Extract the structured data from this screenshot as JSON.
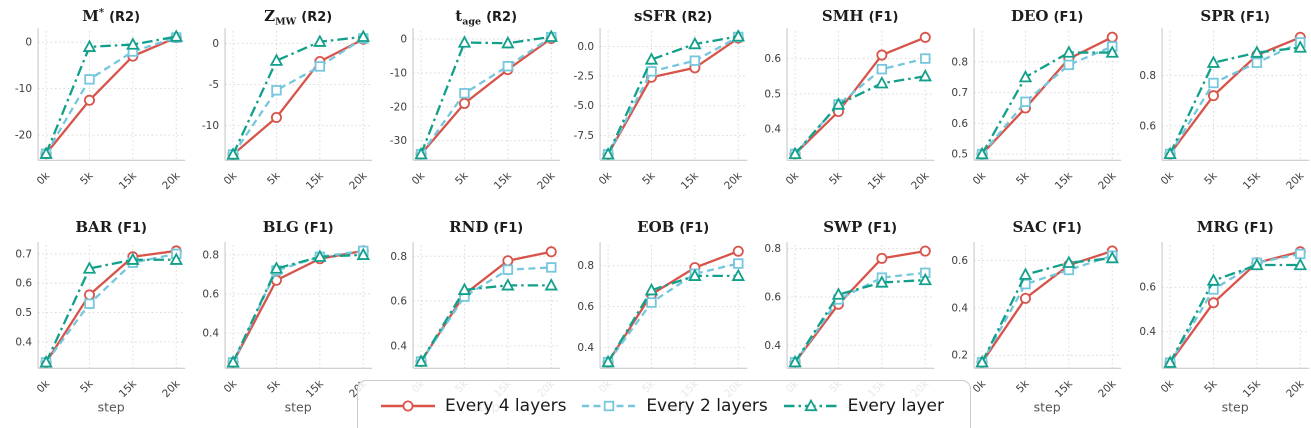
{
  "legend": {
    "items": [
      {
        "label": "Every 4 layers",
        "color": "#d8544b",
        "marker": "circle",
        "dash": "solid"
      },
      {
        "label": "Every 2 layers",
        "color": "#76c7de",
        "marker": "square",
        "dash": "dashed"
      },
      {
        "label": "Every layer",
        "color": "#12a08a",
        "marker": "triangle",
        "dash": "dashdot"
      }
    ]
  },
  "xlabel": "step",
  "x_categories": [
    "0k",
    "5k",
    "15k",
    "20k"
  ],
  "chart_data": [
    {
      "type": "line",
      "title": {
        "base": "M",
        "sup": "*",
        "sub": "",
        "metric": "(R2)"
      },
      "ylim": [
        -25.4,
        2.4
      ],
      "yticks": [
        {
          "v": 0,
          "label": "0"
        },
        {
          "v": -10,
          "label": "-10"
        },
        {
          "v": -20,
          "label": "-20"
        }
      ],
      "series": [
        {
          "name": "Every 4 layers",
          "values": [
            -24,
            -12.5,
            -3,
            1
          ]
        },
        {
          "name": "Every 2 layers",
          "values": [
            -24,
            -8,
            -2,
            1
          ]
        },
        {
          "name": "Every layer",
          "values": [
            -24,
            -1,
            -0.5,
            1.2
          ]
        }
      ]
    },
    {
      "type": "line",
      "title": {
        "base": "Z",
        "sup": "",
        "sub": "MW",
        "metric": "(R2)"
      },
      "ylim": [
        -14.2,
        1.5
      ],
      "yticks": [
        {
          "v": 0,
          "label": "0"
        },
        {
          "v": -5,
          "label": "-5"
        },
        {
          "v": -10,
          "label": "-10"
        }
      ],
      "series": [
        {
          "name": "Every 4 layers",
          "values": [
            -13.5,
            -9,
            -2.2,
            0.5
          ]
        },
        {
          "name": "Every 2 layers",
          "values": [
            -13.5,
            -5.7,
            -2.8,
            0.6
          ]
        },
        {
          "name": "Every layer",
          "values": [
            -13.5,
            -2.1,
            0.2,
            0.8
          ]
        }
      ]
    },
    {
      "type": "line",
      "title": {
        "base": "t",
        "sup": "",
        "sub": "age",
        "metric": "(R2)"
      },
      "ylim": [
        -35.8,
        2.4
      ],
      "yticks": [
        {
          "v": 0,
          "label": "0"
        },
        {
          "v": -10,
          "label": "-10"
        },
        {
          "v": -20,
          "label": "-20"
        },
        {
          "v": -30,
          "label": "-30"
        }
      ],
      "series": [
        {
          "name": "Every 4 layers",
          "values": [
            -34,
            -19,
            -9,
            0.2
          ]
        },
        {
          "name": "Every 2 layers",
          "values": [
            -34,
            -16,
            -8,
            0.6
          ]
        },
        {
          "name": "Every layer",
          "values": [
            -34,
            -1,
            -1.2,
            0.7
          ]
        }
      ]
    },
    {
      "type": "line",
      "title": {
        "base": "sSFR",
        "sup": "",
        "sub": "",
        "metric": "(R2)"
      },
      "ylim": [
        -9.6,
        1.3
      ],
      "yticks": [
        {
          "v": 0,
          "label": "0.0"
        },
        {
          "v": -2.5,
          "label": "-2.5"
        },
        {
          "v": -5,
          "label": "-5.0"
        },
        {
          "v": -7.5,
          "label": "-7.5"
        }
      ],
      "series": [
        {
          "name": "Every 4 layers",
          "values": [
            -9.1,
            -2.6,
            -1.8,
            0.7
          ]
        },
        {
          "name": "Every 2 layers",
          "values": [
            -9.1,
            -2.1,
            -1.2,
            0.8
          ]
        },
        {
          "name": "Every layer",
          "values": [
            -9.1,
            -1.1,
            0.2,
            0.85
          ]
        }
      ]
    },
    {
      "type": "line",
      "title": {
        "base": "SMH",
        "sup": "",
        "sub": "",
        "metric": "(F1)"
      },
      "ylim": [
        0.312,
        0.678
      ],
      "yticks": [
        {
          "v": 0.4,
          "label": "0.4"
        },
        {
          "v": 0.5,
          "label": "0.5"
        },
        {
          "v": 0.6,
          "label": "0.6"
        }
      ],
      "series": [
        {
          "name": "Every 4 layers",
          "values": [
            0.33,
            0.45,
            0.61,
            0.66
          ]
        },
        {
          "name": "Every 2 layers",
          "values": [
            0.33,
            0.47,
            0.57,
            0.6
          ]
        },
        {
          "name": "Every layer",
          "values": [
            0.33,
            0.47,
            0.53,
            0.55
          ]
        }
      ]
    },
    {
      "type": "line",
      "title": {
        "base": "DEO",
        "sup": "",
        "sub": "",
        "metric": "(F1)"
      },
      "ylim": [
        0.48,
        0.9
      ],
      "yticks": [
        {
          "v": 0.5,
          "label": "0.5"
        },
        {
          "v": 0.6,
          "label": "0.6"
        },
        {
          "v": 0.7,
          "label": "0.7"
        },
        {
          "v": 0.8,
          "label": "0.8"
        }
      ],
      "series": [
        {
          "name": "Every 4 layers",
          "values": [
            0.5,
            0.65,
            0.81,
            0.88
          ]
        },
        {
          "name": "Every 2 layers",
          "values": [
            0.5,
            0.67,
            0.79,
            0.85
          ]
        },
        {
          "name": "Every layer",
          "values": [
            0.5,
            0.75,
            0.83,
            0.83
          ]
        }
      ]
    },
    {
      "type": "line",
      "title": {
        "base": "SPR",
        "sup": "",
        "sub": "",
        "metric": "(F1)"
      },
      "ylim": [
        0.465,
        0.975
      ],
      "yticks": [
        {
          "v": 0.6,
          "label": "0.6"
        },
        {
          "v": 0.8,
          "label": "0.8"
        }
      ],
      "series": [
        {
          "name": "Every 4 layers",
          "values": [
            0.49,
            0.72,
            0.88,
            0.95
          ]
        },
        {
          "name": "Every 2 layers",
          "values": [
            0.49,
            0.77,
            0.85,
            0.93
          ]
        },
        {
          "name": "Every layer",
          "values": [
            0.49,
            0.85,
            0.89,
            0.91
          ]
        }
      ]
    },
    {
      "type": "line",
      "title": {
        "base": "BAR",
        "sup": "",
        "sub": "",
        "metric": "(F1)"
      },
      "ylim": [
        0.31,
        0.73
      ],
      "yticks": [
        {
          "v": 0.4,
          "label": "0.4"
        },
        {
          "v": 0.5,
          "label": "0.5"
        },
        {
          "v": 0.6,
          "label": "0.6"
        },
        {
          "v": 0.7,
          "label": "0.7"
        }
      ],
      "series": [
        {
          "name": "Every 4 layers",
          "values": [
            0.33,
            0.56,
            0.69,
            0.71
          ]
        },
        {
          "name": "Every 2 layers",
          "values": [
            0.33,
            0.53,
            0.67,
            0.7
          ]
        },
        {
          "name": "Every layer",
          "values": [
            0.33,
            0.65,
            0.68,
            0.68
          ]
        }
      ]
    },
    {
      "type": "line",
      "title": {
        "base": "BLG",
        "sup": "",
        "sub": "",
        "metric": "(F1)"
      },
      "ylim": [
        0.22,
        0.85
      ],
      "yticks": [
        {
          "v": 0.4,
          "label": "0.4"
        },
        {
          "v": 0.6,
          "label": "0.6"
        },
        {
          "v": 0.8,
          "label": "0.8"
        }
      ],
      "series": [
        {
          "name": "Every 4 layers",
          "values": [
            0.25,
            0.67,
            0.78,
            0.82
          ]
        },
        {
          "name": "Every 2 layers",
          "values": [
            0.25,
            0.72,
            0.79,
            0.82
          ]
        },
        {
          "name": "Every layer",
          "values": [
            0.25,
            0.73,
            0.79,
            0.8
          ]
        }
      ]
    },
    {
      "type": "line",
      "title": {
        "base": "RND",
        "sup": "",
        "sub": "",
        "metric": "(F1)"
      },
      "ylim": [
        0.3,
        0.85
      ],
      "yticks": [
        {
          "v": 0.4,
          "label": "0.4"
        },
        {
          "v": 0.6,
          "label": "0.6"
        },
        {
          "v": 0.8,
          "label": "0.8"
        }
      ],
      "series": [
        {
          "name": "Every 4 layers",
          "values": [
            0.33,
            0.63,
            0.78,
            0.82
          ]
        },
        {
          "name": "Every 2 layers",
          "values": [
            0.33,
            0.62,
            0.74,
            0.75
          ]
        },
        {
          "name": "Every layer",
          "values": [
            0.33,
            0.65,
            0.67,
            0.67
          ]
        }
      ]
    },
    {
      "type": "line",
      "title": {
        "base": "EOB",
        "sup": "",
        "sub": "",
        "metric": "(F1)"
      },
      "ylim": [
        0.3,
        0.9
      ],
      "yticks": [
        {
          "v": 0.4,
          "label": "0.4"
        },
        {
          "v": 0.6,
          "label": "0.6"
        },
        {
          "v": 0.8,
          "label": "0.8"
        }
      ],
      "series": [
        {
          "name": "Every 4 layers",
          "values": [
            0.33,
            0.66,
            0.79,
            0.87
          ]
        },
        {
          "name": "Every 2 layers",
          "values": [
            0.33,
            0.62,
            0.76,
            0.81
          ]
        },
        {
          "name": "Every layer",
          "values": [
            0.33,
            0.68,
            0.75,
            0.75
          ]
        }
      ]
    },
    {
      "type": "line",
      "title": {
        "base": "SWP",
        "sup": "",
        "sub": "",
        "metric": "(F1)"
      },
      "ylim": [
        0.305,
        0.815
      ],
      "yticks": [
        {
          "v": 0.4,
          "label": "0.4"
        },
        {
          "v": 0.6,
          "label": "0.6"
        },
        {
          "v": 0.8,
          "label": "0.8"
        }
      ],
      "series": [
        {
          "name": "Every 4 layers",
          "values": [
            0.33,
            0.57,
            0.76,
            0.79
          ]
        },
        {
          "name": "Every 2 layers",
          "values": [
            0.33,
            0.59,
            0.68,
            0.7
          ]
        },
        {
          "name": "Every layer",
          "values": [
            0.33,
            0.61,
            0.66,
            0.67
          ]
        }
      ]
    },
    {
      "type": "line",
      "title": {
        "base": "SAC",
        "sup": "",
        "sub": "",
        "metric": "(F1)"
      },
      "ylim": [
        0.145,
        0.665
      ],
      "yticks": [
        {
          "v": 0.2,
          "label": "0.2"
        },
        {
          "v": 0.4,
          "label": "0.4"
        },
        {
          "v": 0.6,
          "label": "0.6"
        }
      ],
      "series": [
        {
          "name": "Every 4 layers",
          "values": [
            0.17,
            0.44,
            0.58,
            0.64
          ]
        },
        {
          "name": "Every 2 layers",
          "values": [
            0.17,
            0.5,
            0.56,
            0.62
          ]
        },
        {
          "name": "Every layer",
          "values": [
            0.17,
            0.54,
            0.59,
            0.61
          ]
        }
      ]
    },
    {
      "type": "line",
      "title": {
        "base": "MRG",
        "sup": "",
        "sub": "",
        "metric": "(F1)"
      },
      "ylim": [
        0.235,
        0.79
      ],
      "yticks": [
        {
          "v": 0.4,
          "label": "0.4"
        },
        {
          "v": 0.6,
          "label": "0.6"
        }
      ],
      "series": [
        {
          "name": "Every 4 layers",
          "values": [
            0.26,
            0.53,
            0.71,
            0.76
          ]
        },
        {
          "name": "Every 2 layers",
          "values": [
            0.26,
            0.59,
            0.71,
            0.75
          ]
        },
        {
          "name": "Every layer",
          "values": [
            0.26,
            0.63,
            0.7,
            0.7
          ]
        }
      ]
    }
  ]
}
